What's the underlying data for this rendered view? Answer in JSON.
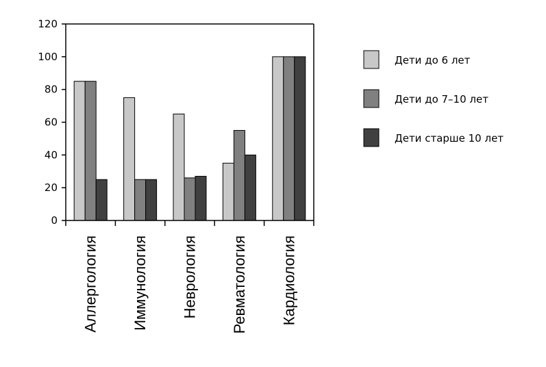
{
  "chart_data": {
    "type": "bar",
    "categories": [
      "Аллергология",
      "Иммунология",
      "Неврология",
      "Ревматология",
      "Кардиология"
    ],
    "series": [
      {
        "name": "Дети до 6 лет",
        "values": [
          85,
          75,
          65,
          35,
          100
        ],
        "color": "#c8c8c8"
      },
      {
        "name": "Дети до 7–10 лет",
        "values": [
          85,
          25,
          26,
          55,
          100
        ],
        "color": "#808080"
      },
      {
        "name": "Дети старше 10 лет",
        "values": [
          25,
          25,
          27,
          40,
          100
        ],
        "color": "#404040"
      }
    ],
    "ylim": [
      0,
      120
    ],
    "yticks": [
      0,
      20,
      40,
      60,
      80,
      100,
      120
    ],
    "ytick_labels": [
      "0",
      "20",
      "40",
      "60",
      "80",
      "100",
      "120"
    ],
    "grid": false,
    "legend_position": "right",
    "title": "",
    "xlabel": "",
    "ylabel": ""
  }
}
